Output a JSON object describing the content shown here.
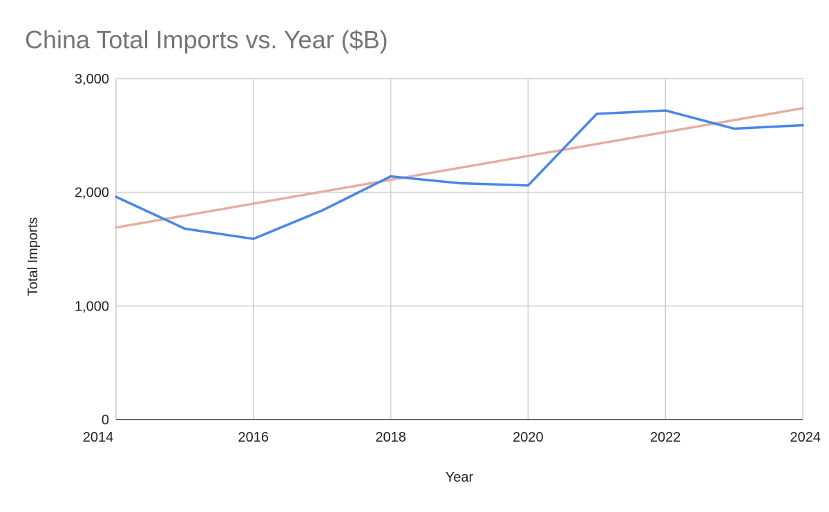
{
  "chart_data": {
    "type": "line",
    "title": "China Total Imports vs. Year ($B)",
    "xlabel": "Year",
    "ylabel": "Total Imports",
    "xlim": [
      2014,
      2024
    ],
    "ylim": [
      0,
      3000
    ],
    "x_ticks": [
      2014,
      2016,
      2018,
      2020,
      2022,
      2024
    ],
    "y_ticks": [
      0,
      1000,
      2000,
      3000
    ],
    "x_tick_labels": [
      "2014",
      "2016",
      "2018",
      "2020",
      "2022",
      "2024"
    ],
    "y_tick_labels": [
      "0",
      "1,000",
      "2,000",
      "3,000"
    ],
    "grid": true,
    "legend": "none",
    "series": [
      {
        "color": "#4a86e8",
        "x": [
          2014,
          2015,
          2016,
          2017,
          2018,
          2019,
          2020,
          2021,
          2022,
          2023,
          2024
        ],
        "values": [
          1960,
          1680,
          1590,
          1840,
          2140,
          2080,
          2060,
          2690,
          2720,
          2560,
          2590
        ]
      }
    ],
    "trendline": {
      "color": "#e6ada3",
      "type": "linear",
      "x": [
        2014,
        2024
      ],
      "values": [
        1690,
        2740
      ]
    }
  }
}
